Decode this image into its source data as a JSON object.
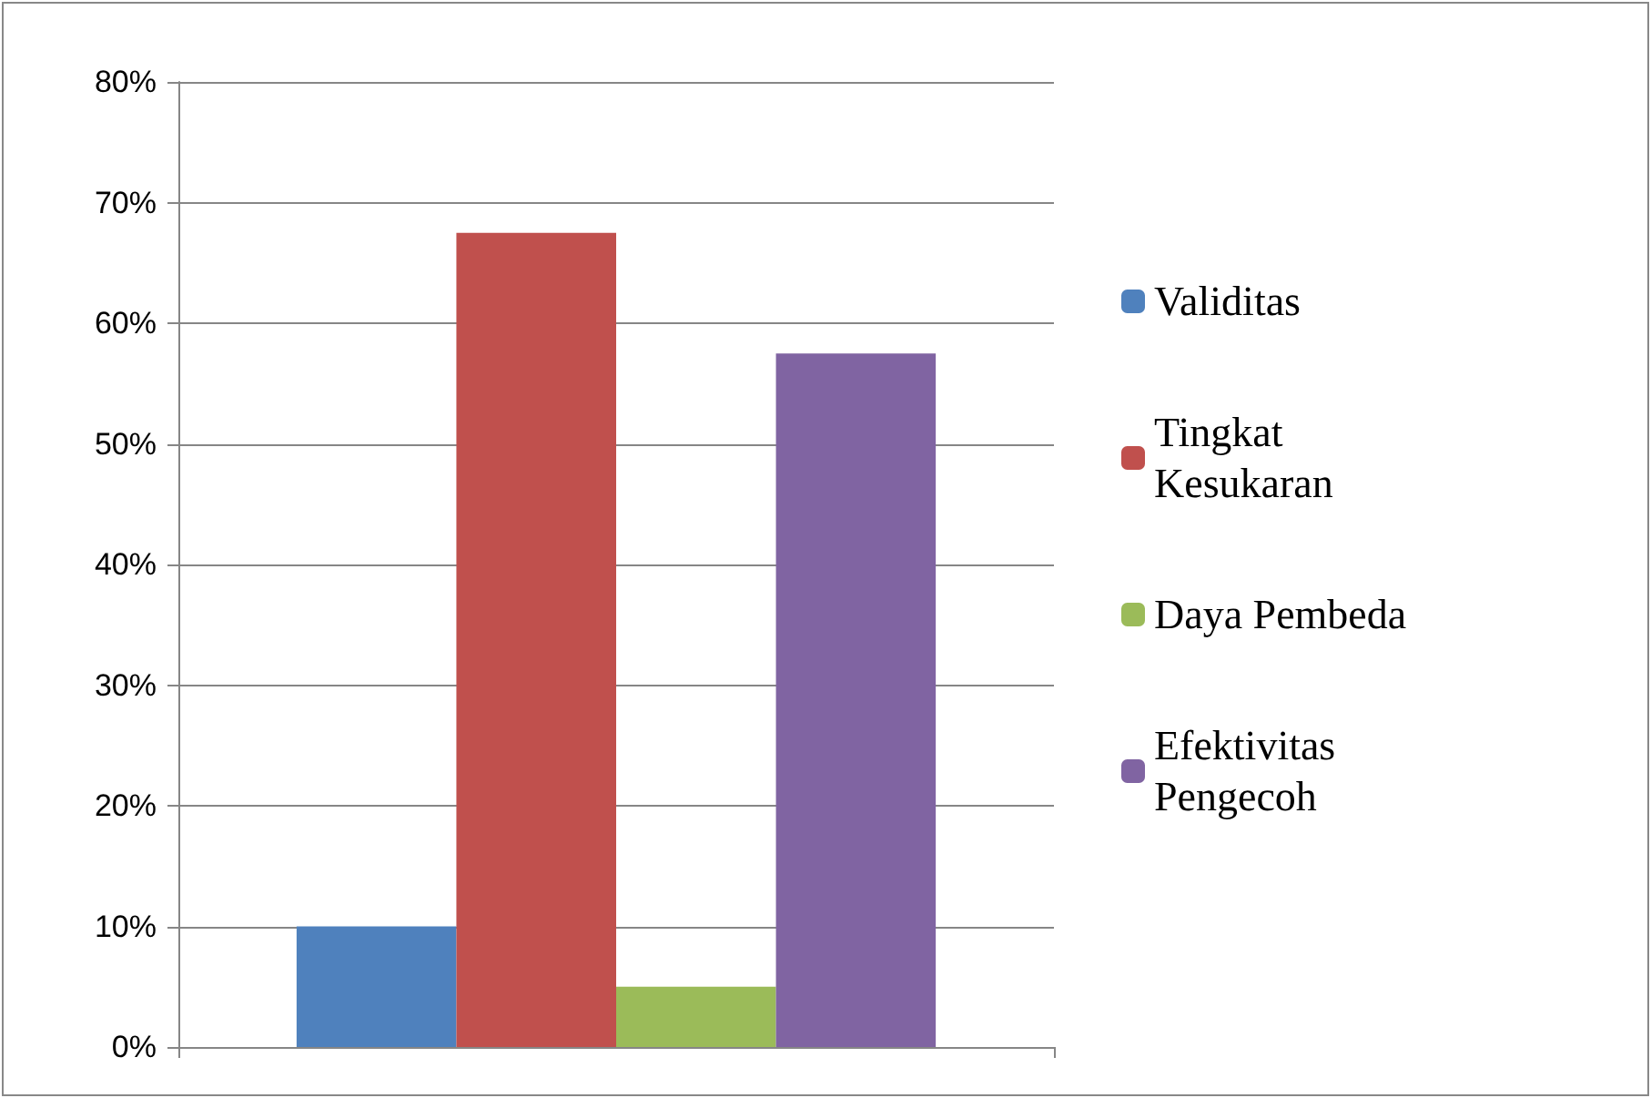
{
  "chart_data": {
    "type": "bar",
    "categories": [
      null
    ],
    "series": [
      {
        "name": "Validitas",
        "color": "#4f81bd",
        "values": [
          10
        ]
      },
      {
        "name": "Tingkat Kesukaran",
        "color": "#c0504d",
        "values": [
          67.5
        ]
      },
      {
        "name": "Daya Pembeda",
        "color": "#9bbb59",
        "values": [
          5
        ]
      },
      {
        "name": "Efektivitas Pengecoh",
        "color": "#8064a2",
        "values": [
          57.5
        ]
      }
    ],
    "ylim": [
      0,
      80
    ],
    "yticks": [
      {
        "value": 0,
        "label": "0%"
      },
      {
        "value": 10,
        "label": "10%"
      },
      {
        "value": 20,
        "label": "20%"
      },
      {
        "value": 30,
        "label": "30%"
      },
      {
        "value": 40,
        "label": "40%"
      },
      {
        "value": 50,
        "label": "50%"
      },
      {
        "value": 60,
        "label": "60%"
      },
      {
        "value": 70,
        "label": "70%"
      },
      {
        "value": 80,
        "label": "80%"
      }
    ],
    "grid": "y",
    "legend": "right"
  }
}
